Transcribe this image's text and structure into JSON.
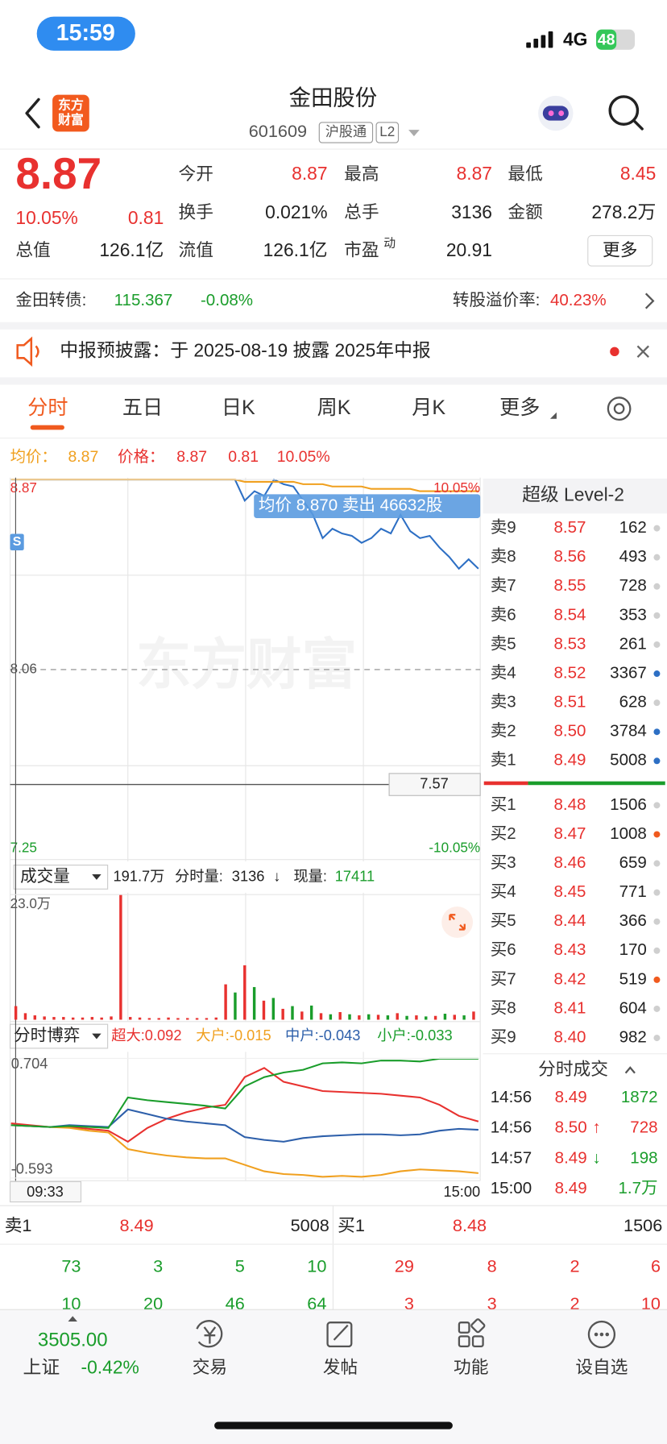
{
  "status_bar": {
    "time": "15:59",
    "network": "4G",
    "battery": "48"
  },
  "header": {
    "logo": [
      "东方",
      "财富"
    ],
    "title": "金田股份",
    "code": "601609",
    "tags": [
      "沪股通",
      "L2"
    ]
  },
  "quote": {
    "price": "8.87",
    "change_pct": "10.05%",
    "change": "0.81",
    "fields": [
      {
        "label": "今开",
        "value": "8.87"
      },
      {
        "label": "最高",
        "value": "8.87"
      },
      {
        "label": "最低",
        "value": "8.45"
      },
      {
        "label": "换手",
        "value": "0.021%"
      },
      {
        "label": "总手",
        "value": "3136"
      },
      {
        "label": "金额",
        "value": "278.2万"
      },
      {
        "label": "总值",
        "value": "126.1亿"
      },
      {
        "label": "流值",
        "value": "126.1亿"
      },
      {
        "label": "市盈",
        "sup": "动",
        "value": "20.91"
      }
    ],
    "more": "更多"
  },
  "bond": {
    "label": "金田转债:",
    "price": "115.367",
    "change": "-0.08%",
    "premium_label": "转股溢价率:",
    "premium": "40.23%"
  },
  "notice": {
    "text": "中报预披露：于 2025-08-19 披露 2025年中报"
  },
  "tabs": [
    "分时",
    "五日",
    "日K",
    "周K",
    "月K",
    "更多"
  ],
  "chart_header": {
    "avg_label": "均价：",
    "avg": "8.87",
    "price_label": "价格：",
    "price": "8.87",
    "change": "0.81",
    "pct": "10.05%"
  },
  "chart_data": [
    {
      "type": "line",
      "watermark": "东方财富",
      "tooltip": "均价 8.870 卖出 46632股",
      "marker": "S",
      "ylim": [
        7.25,
        8.87
      ],
      "yticks": [
        8.87,
        8.06,
        7.25
      ],
      "y2lim": [
        -10.05,
        10.05
      ],
      "y2ticks": [
        {
          "value": 10.05,
          "label": "10.05%"
        },
        {
          "value": -10.05,
          "label": "-10.05%"
        }
      ],
      "cursor": 7.57,
      "series": [
        {
          "color": "#2d6fc4",
          "values": [
            8.87,
            8.87,
            8.87,
            8.87,
            8.87,
            8.87,
            8.87,
            8.87,
            8.87,
            8.87,
            8.87,
            8.87,
            8.87,
            8.87,
            8.87,
            8.87,
            8.87,
            8.87,
            8.87,
            8.87,
            8.87,
            8.87,
            8.87,
            8.87,
            8.78,
            8.82,
            8.8,
            8.87,
            8.85,
            8.84,
            8.78,
            8.72,
            8.62,
            8.66,
            8.64,
            8.63,
            8.6,
            8.62,
            8.66,
            8.64,
            8.72,
            8.65,
            8.62,
            8.63,
            8.58,
            8.54,
            8.49,
            8.53,
            8.49
          ]
        },
        {
          "color": "#f0a01f",
          "values": [
            8.87,
            8.87,
            8.87,
            8.87,
            8.87,
            8.87,
            8.87,
            8.87,
            8.87,
            8.87,
            8.87,
            8.87,
            8.87,
            8.87,
            8.87,
            8.87,
            8.87,
            8.87,
            8.87,
            8.87,
            8.87,
            8.87,
            8.87,
            8.87,
            8.86,
            8.86,
            8.86,
            8.86,
            8.86,
            8.86,
            8.85,
            8.85,
            8.85,
            8.84,
            8.84,
            8.84,
            8.84,
            8.83,
            8.83,
            8.83,
            8.83,
            8.83,
            8.82,
            8.82,
            8.82,
            8.82,
            8.82,
            8.82,
            8.82
          ]
        }
      ]
    },
    {
      "type": "bar",
      "selector": "成交量",
      "total": "191.7万",
      "info_label": "分时量:",
      "info": "3136",
      "arrow": "↓",
      "current_label": "现量:",
      "current": "17411",
      "ylim": [
        0,
        23
      ],
      "yticks": [
        {
          "value": 23,
          "label": "23.0万"
        }
      ],
      "series": [
        {
          "color": "#e8312f",
          "values": [
            2.5,
            1.2,
            0.8,
            0.6,
            0.5,
            0.5,
            0.4,
            0.4,
            0.5,
            0.4,
            0.6,
            23,
            0.5,
            0.4,
            0.3,
            0.3,
            0.4,
            0.3,
            0.3,
            0.3,
            0.3,
            0.4,
            6.5,
            null,
            10,
            null,
            3.5,
            null,
            2,
            null,
            1.5,
            null,
            1.2,
            null,
            1.4,
            null,
            0.8,
            null,
            0.9,
            null,
            1.2,
            null,
            0.8,
            null,
            0.7,
            null,
            0.9,
            null,
            1.5
          ]
        },
        {
          "color": "#1a9d2b",
          "values": [
            null,
            null,
            null,
            null,
            null,
            null,
            null,
            null,
            null,
            null,
            null,
            null,
            null,
            null,
            null,
            null,
            null,
            null,
            null,
            null,
            null,
            null,
            null,
            5,
            null,
            6,
            null,
            4,
            null,
            2.5,
            null,
            2.6,
            null,
            1,
            null,
            1,
            null,
            1,
            null,
            0.8,
            null,
            0.7,
            null,
            0.6,
            null,
            1.1,
            null,
            0.8,
            null
          ]
        }
      ]
    },
    {
      "type": "line",
      "selector": "分时博弈",
      "ylim": [
        -0.593,
        0.704
      ],
      "yticks": [
        0.704,
        -0.593
      ],
      "x_labels": [
        "09:33",
        "15:00"
      ],
      "series": [
        {
          "name": "超大:0.092",
          "color": "#e8312f",
          "values": [
            0,
            -0.02,
            -0.04,
            -0.04,
            -0.06,
            -0.08,
            -0.2,
            -0.05,
            0.05,
            0.12,
            0.17,
            0.2,
            0.5,
            0.6,
            0.45,
            0.4,
            0.35,
            0.34,
            0.33,
            0.32,
            0.3,
            0.28,
            0.2,
            0.08,
            0.02
          ]
        },
        {
          "name": "大户:-0.015",
          "color": "#f0a01f",
          "values": [
            -0.02,
            -0.03,
            -0.04,
            -0.05,
            -0.08,
            -0.1,
            -0.28,
            -0.32,
            -0.35,
            -0.37,
            -0.38,
            -0.38,
            -0.45,
            -0.52,
            -0.55,
            -0.56,
            -0.58,
            -0.57,
            -0.58,
            -0.56,
            -0.52,
            -0.5,
            -0.51,
            -0.52,
            -0.54
          ]
        },
        {
          "name": "中户:-0.043",
          "color": "#2d5faa",
          "values": [
            -0.02,
            -0.03,
            -0.04,
            -0.02,
            -0.03,
            -0.04,
            0.15,
            0.1,
            0.05,
            0.02,
            0,
            -0.02,
            -0.15,
            -0.18,
            -0.2,
            -0.16,
            -0.14,
            -0.13,
            -0.12,
            -0.12,
            -0.13,
            -0.12,
            -0.08,
            -0.06,
            -0.07
          ]
        },
        {
          "name": "小户:-0.033",
          "color": "#1a9d2b",
          "values": [
            -0.02,
            -0.03,
            -0.04,
            -0.03,
            -0.04,
            -0.05,
            0.28,
            0.25,
            0.23,
            0.21,
            0.19,
            0.16,
            0.4,
            0.5,
            0.55,
            0.58,
            0.65,
            0.66,
            0.65,
            0.68,
            0.68,
            0.67,
            0.7,
            0.7,
            0.7
          ]
        }
      ]
    }
  ],
  "order_book": {
    "title": "超级 Level-2",
    "asks": [
      {
        "label": "卖9",
        "price": "8.57",
        "volume": "162",
        "dot": "#cfcfcf"
      },
      {
        "label": "卖8",
        "price": "8.56",
        "volume": "493",
        "dot": "#cfcfcf"
      },
      {
        "label": "卖7",
        "price": "8.55",
        "volume": "728",
        "dot": "#cfcfcf"
      },
      {
        "label": "卖6",
        "price": "8.54",
        "volume": "353",
        "dot": "#cfcfcf"
      },
      {
        "label": "卖5",
        "price": "8.53",
        "volume": "261",
        "dot": "#cfcfcf"
      },
      {
        "label": "卖4",
        "price": "8.52",
        "volume": "3367",
        "dot": "#2d6fc4"
      },
      {
        "label": "卖3",
        "price": "8.51",
        "volume": "628",
        "dot": "#cfcfcf"
      },
      {
        "label": "卖2",
        "price": "8.50",
        "volume": "3784",
        "dot": "#2d6fc4"
      },
      {
        "label": "卖1",
        "price": "8.49",
        "volume": "5008",
        "dot": "#2d6fc4"
      }
    ],
    "bids": [
      {
        "label": "买1",
        "price": "8.48",
        "volume": "1506",
        "dot": "#cfcfcf"
      },
      {
        "label": "买2",
        "price": "8.47",
        "volume": "1008",
        "dot": "#f05a1e"
      },
      {
        "label": "买3",
        "price": "8.46",
        "volume": "659",
        "dot": "#cfcfcf"
      },
      {
        "label": "买4",
        "price": "8.45",
        "volume": "771",
        "dot": "#cfcfcf"
      },
      {
        "label": "买5",
        "price": "8.44",
        "volume": "366",
        "dot": "#cfcfcf"
      },
      {
        "label": "买6",
        "price": "8.43",
        "volume": "170",
        "dot": "#cfcfcf"
      },
      {
        "label": "买7",
        "price": "8.42",
        "volume": "519",
        "dot": "#f05a1e"
      },
      {
        "label": "买8",
        "price": "8.41",
        "volume": "604",
        "dot": "#cfcfcf"
      },
      {
        "label": "买9",
        "price": "8.40",
        "volume": "982",
        "dot": "#cfcfcf"
      }
    ]
  },
  "trades": {
    "title": "分时成交",
    "rows": [
      {
        "time": "14:56",
        "price": "8.49",
        "volume": "1872",
        "volume_color": "#1a9d2b"
      },
      {
        "time": "14:56",
        "price": "8.50",
        "arrow": "↑",
        "arrow_color": "#e8312f",
        "volume": "728",
        "volume_color": "#e8312f"
      },
      {
        "time": "14:57",
        "price": "8.49",
        "arrow": "↓",
        "arrow_color": "#1a9d2b",
        "volume": "198",
        "volume_color": "#1a9d2b"
      },
      {
        "time": "15:00",
        "price": "8.49",
        "volume": "1.7万",
        "volume_color": "#1a9d2b"
      }
    ]
  },
  "summary": {
    "ask_label": "卖1",
    "ask_price": "8.49",
    "ask_volume": "5008",
    "bid_label": "买1",
    "bid_price": "8.48",
    "bid_volume": "1506",
    "ask_rows": [
      [
        "73",
        "3",
        "5",
        "10"
      ],
      [
        "10",
        "20",
        "46",
        "64"
      ]
    ],
    "bid_rows": [
      [
        "29",
        "8",
        "2",
        "6"
      ],
      [
        "3",
        "3",
        "2",
        "10"
      ]
    ]
  },
  "tab_bar": {
    "index_value": "3505.00",
    "index_name": "上证",
    "index_change": "-0.42%",
    "items": [
      "交易",
      "发帖",
      "功能",
      "设自选"
    ]
  }
}
